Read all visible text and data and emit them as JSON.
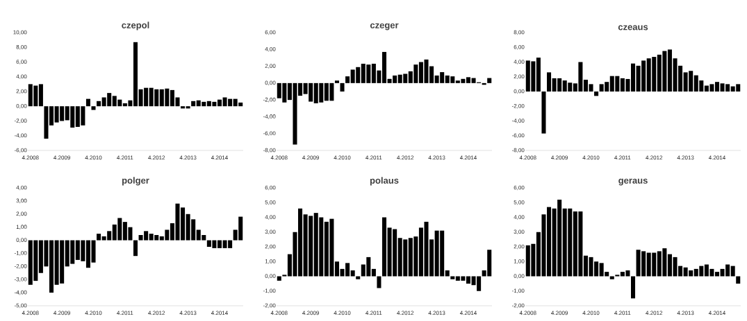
{
  "chart_data": [
    {
      "type": "bar",
      "title": "czepol",
      "color": "#000000",
      "categories": [
        "4.2008",
        null,
        null,
        null,
        null,
        null,
        "4.2009",
        null,
        null,
        null,
        null,
        null,
        "4.2010",
        null,
        null,
        null,
        null,
        null,
        "4.2011",
        null,
        null,
        null,
        null,
        null,
        "4.2012",
        null,
        null,
        null,
        null,
        null,
        "4.2013",
        null,
        null,
        null,
        null,
        null,
        "4.2014",
        null,
        null,
        null,
        null
      ],
      "values": [
        3.0,
        2.8,
        3.0,
        -4.4,
        -2.6,
        -2.2,
        -2.0,
        -1.9,
        -2.9,
        -2.8,
        -2.6,
        1.0,
        -0.5,
        0.7,
        1.2,
        1.8,
        1.4,
        0.9,
        0.4,
        0.8,
        8.7,
        2.3,
        2.5,
        2.5,
        2.3,
        2.3,
        2.4,
        2.2,
        1.2,
        -0.3,
        -0.3,
        0.7,
        0.8,
        0.6,
        0.7,
        0.6,
        0.9,
        1.2,
        1.0,
        1.0,
        0.5
      ],
      "ylim": [
        -6,
        10
      ],
      "yticks": [
        {
          "value": -6,
          "label": "-6,00"
        },
        {
          "value": -4,
          "label": "-4,00"
        },
        {
          "value": -2,
          "label": "-2,00"
        },
        {
          "value": 0,
          "label": "0,00"
        },
        {
          "value": 2,
          "label": "2,00"
        },
        {
          "value": 4,
          "label": "4,00"
        },
        {
          "value": 6,
          "label": "6,00"
        },
        {
          "value": 8,
          "label": "8,00"
        },
        {
          "value": 10,
          "label": "10,00"
        }
      ]
    },
    {
      "type": "bar",
      "title": "czeger",
      "color": "#000000",
      "categories": [
        "4.2008",
        null,
        null,
        null,
        null,
        null,
        "4.2009",
        null,
        null,
        null,
        null,
        null,
        "4.2010",
        null,
        null,
        null,
        null,
        null,
        "4.2011",
        null,
        null,
        null,
        null,
        null,
        "4.2012",
        null,
        null,
        null,
        null,
        null,
        "4.2013",
        null,
        null,
        null,
        null,
        null,
        "4.2014",
        null,
        null,
        null,
        null
      ],
      "values": [
        -1.8,
        -2.3,
        -2.0,
        -7.3,
        -1.5,
        -1.3,
        -2.2,
        -2.4,
        -2.3,
        -2.1,
        -2.1,
        0.3,
        -1.0,
        0.8,
        1.6,
        1.9,
        2.3,
        2.2,
        2.3,
        1.5,
        3.7,
        0.5,
        0.9,
        1.0,
        1.1,
        1.4,
        2.2,
        2.5,
        2.8,
        2.0,
        0.9,
        1.3,
        0.9,
        0.8,
        0.3,
        0.5,
        0.7,
        0.6,
        0.1,
        -0.2,
        0.6
      ],
      "ylim": [
        -8,
        6
      ],
      "yticks": [
        {
          "value": -8,
          "label": "-8,00"
        },
        {
          "value": -6,
          "label": "-6,00"
        },
        {
          "value": -4,
          "label": "-4,00"
        },
        {
          "value": -2,
          "label": "-2,00"
        },
        {
          "value": 0,
          "label": "0,00"
        },
        {
          "value": 2,
          "label": "2,00"
        },
        {
          "value": 4,
          "label": "4,00"
        },
        {
          "value": 6,
          "label": "6,00"
        }
      ]
    },
    {
      "type": "bar",
      "title": "czeaus",
      "color": "#000000",
      "categories": [
        "4.2008",
        null,
        null,
        null,
        null,
        null,
        "4.2009",
        null,
        null,
        null,
        null,
        null,
        "4.2010",
        null,
        null,
        null,
        null,
        null,
        "4.2011",
        null,
        null,
        null,
        null,
        null,
        "4.2012",
        null,
        null,
        null,
        null,
        null,
        "4.2013",
        null,
        null,
        null,
        null,
        null,
        "4.2014",
        null,
        null,
        null,
        null
      ],
      "values": [
        4.2,
        4.1,
        4.6,
        -5.7,
        2.6,
        1.8,
        1.8,
        1.5,
        1.2,
        1.1,
        4.0,
        1.6,
        1.0,
        -0.6,
        1.0,
        1.3,
        2.1,
        2.1,
        1.8,
        1.7,
        3.8,
        3.5,
        4.2,
        4.5,
        4.7,
        5.0,
        5.5,
        5.7,
        4.5,
        3.5,
        2.6,
        2.8,
        2.2,
        1.5,
        0.8,
        1.0,
        1.3,
        1.1,
        1.0,
        0.7,
        1.0
      ],
      "ylim": [
        -8,
        8
      ],
      "yticks": [
        {
          "value": -8,
          "label": "-8,00"
        },
        {
          "value": -6,
          "label": "-6,00"
        },
        {
          "value": -4,
          "label": "-4,00"
        },
        {
          "value": -2,
          "label": "-2,00"
        },
        {
          "value": 0,
          "label": "0,00"
        },
        {
          "value": 2,
          "label": "2,00"
        },
        {
          "value": 4,
          "label": "4,00"
        },
        {
          "value": 6,
          "label": "6,00"
        },
        {
          "value": 8,
          "label": "8,00"
        }
      ]
    },
    {
      "type": "bar",
      "title": "polger",
      "color": "#000000",
      "categories": [
        "4.2008",
        null,
        null,
        null,
        null,
        null,
        "4.2009",
        null,
        null,
        null,
        null,
        null,
        "4.2010",
        null,
        null,
        null,
        null,
        null,
        "4.2011",
        null,
        null,
        null,
        null,
        null,
        "4.2012",
        null,
        null,
        null,
        null,
        null,
        "4.2013",
        null,
        null,
        null,
        null,
        null,
        "4.2014",
        null,
        null,
        null,
        null
      ],
      "values": [
        -3.4,
        -3.1,
        -2.5,
        -2.0,
        -4.0,
        -3.4,
        -3.3,
        -2.0,
        -1.8,
        -1.5,
        -1.6,
        -2.1,
        -1.7,
        0.5,
        0.3,
        0.7,
        1.2,
        1.7,
        1.4,
        1.0,
        -1.2,
        0.4,
        0.7,
        0.5,
        0.4,
        0.3,
        0.8,
        1.3,
        2.8,
        2.5,
        2.0,
        1.6,
        0.8,
        0.4,
        -0.5,
        -0.6,
        -0.6,
        -0.6,
        -0.6,
        0.8,
        1.8
      ],
      "ylim": [
        -5,
        4
      ],
      "yticks": [
        {
          "value": -5,
          "label": "-5,00"
        },
        {
          "value": -4,
          "label": "-4,00"
        },
        {
          "value": -3,
          "label": "-3,00"
        },
        {
          "value": -2,
          "label": "-2,00"
        },
        {
          "value": -1,
          "label": "-1,00"
        },
        {
          "value": 0,
          "label": "0,00"
        },
        {
          "value": 1,
          "label": "1,00"
        },
        {
          "value": 2,
          "label": "2,00"
        },
        {
          "value": 3,
          "label": "3,00"
        },
        {
          "value": 4,
          "label": "4,00"
        }
      ]
    },
    {
      "type": "bar",
      "title": "polaus",
      "color": "#000000",
      "categories": [
        "4.2008",
        null,
        null,
        null,
        null,
        null,
        "4.2009",
        null,
        null,
        null,
        null,
        null,
        "4.2010",
        null,
        null,
        null,
        null,
        null,
        "4.2011",
        null,
        null,
        null,
        null,
        null,
        "4.2012",
        null,
        null,
        null,
        null,
        null,
        "4.2013",
        null,
        null,
        null,
        null,
        null,
        "4.2014",
        null,
        null,
        null,
        null
      ],
      "values": [
        -0.3,
        0.1,
        1.5,
        3.0,
        4.6,
        4.2,
        4.1,
        4.3,
        4.0,
        3.7,
        3.9,
        1.0,
        0.5,
        0.9,
        0.4,
        -0.2,
        0.8,
        1.3,
        0.5,
        -0.8,
        4.0,
        3.3,
        3.2,
        2.6,
        2.5,
        2.6,
        2.7,
        3.3,
        3.7,
        2.5,
        3.1,
        3.1,
        0.4,
        -0.2,
        -0.3,
        -0.3,
        -0.5,
        -0.6,
        -1.0,
        0.4,
        1.8
      ],
      "ylim": [
        -2,
        6
      ],
      "yticks": [
        {
          "value": -2,
          "label": "-2,00"
        },
        {
          "value": -1,
          "label": "-1,00"
        },
        {
          "value": 0,
          "label": "0,00"
        },
        {
          "value": 1,
          "label": "1,00"
        },
        {
          "value": 2,
          "label": "2,00"
        },
        {
          "value": 3,
          "label": "3,00"
        },
        {
          "value": 4,
          "label": "4,00"
        },
        {
          "value": 5,
          "label": "5,00"
        },
        {
          "value": 6,
          "label": "6,00"
        }
      ]
    },
    {
      "type": "bar",
      "title": "geraus",
      "color": "#000000",
      "categories": [
        "4.2008",
        null,
        null,
        null,
        null,
        null,
        "4.2009",
        null,
        null,
        null,
        null,
        null,
        "4.2010",
        null,
        null,
        null,
        null,
        null,
        "4.2011",
        null,
        null,
        null,
        null,
        null,
        "4.2012",
        null,
        null,
        null,
        null,
        null,
        "4.2013",
        null,
        null,
        null,
        null,
        null,
        "4.2014",
        null,
        null,
        null,
        null
      ],
      "values": [
        2.1,
        2.2,
        3.0,
        4.2,
        4.7,
        4.6,
        5.2,
        4.6,
        4.6,
        4.4,
        4.4,
        1.4,
        1.3,
        1.0,
        0.9,
        0.3,
        -0.2,
        0.1,
        0.3,
        0.4,
        -1.5,
        1.8,
        1.7,
        1.6,
        1.6,
        1.7,
        1.9,
        1.5,
        1.3,
        0.7,
        0.6,
        0.4,
        0.5,
        0.7,
        0.8,
        0.5,
        0.3,
        0.5,
        0.8,
        0.7,
        -0.5
      ],
      "ylim": [
        -2,
        6
      ],
      "yticks": [
        {
          "value": -2,
          "label": "-2,00"
        },
        {
          "value": -1,
          "label": "-1,00"
        },
        {
          "value": 0,
          "label": "0,00"
        },
        {
          "value": 1,
          "label": "1,00"
        },
        {
          "value": 2,
          "label": "2,00"
        },
        {
          "value": 3,
          "label": "3,00"
        },
        {
          "value": 4,
          "label": "4,00"
        },
        {
          "value": 5,
          "label": "5,00"
        },
        {
          "value": 6,
          "label": "6,00"
        }
      ]
    }
  ]
}
